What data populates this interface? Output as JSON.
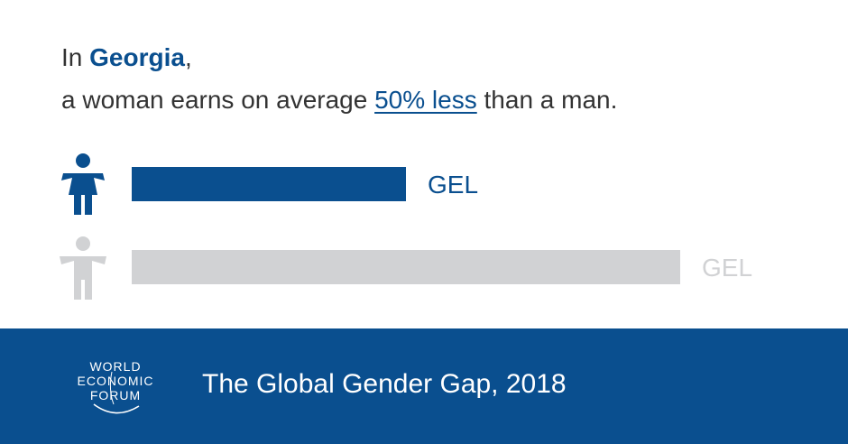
{
  "headline": {
    "prefix": "In ",
    "country": "Georgia",
    "suffix": ",",
    "line2_prefix": "a woman earns on average ",
    "gap_text": "50% less",
    "line2_suffix": " than a man."
  },
  "chart_data": {
    "type": "bar",
    "orientation": "horizontal",
    "categories": [
      "woman",
      "man"
    ],
    "values": [
      50,
      100
    ],
    "unit_labels": [
      "GEL",
      "GEL"
    ],
    "xlim": [
      0,
      100
    ],
    "colors": {
      "woman": "#0a4f8f",
      "man": "#d1d2d4"
    },
    "icons": [
      "female-figure-icon",
      "male-figure-icon"
    ],
    "title": "",
    "xlabel": "",
    "ylabel": "",
    "grid": false
  },
  "footer": {
    "logo_lines": [
      "WORLD",
      "ECONOMIC",
      "FORUM"
    ],
    "source": "The Global Gender Gap, 2018",
    "background": "#0a4f8f"
  }
}
